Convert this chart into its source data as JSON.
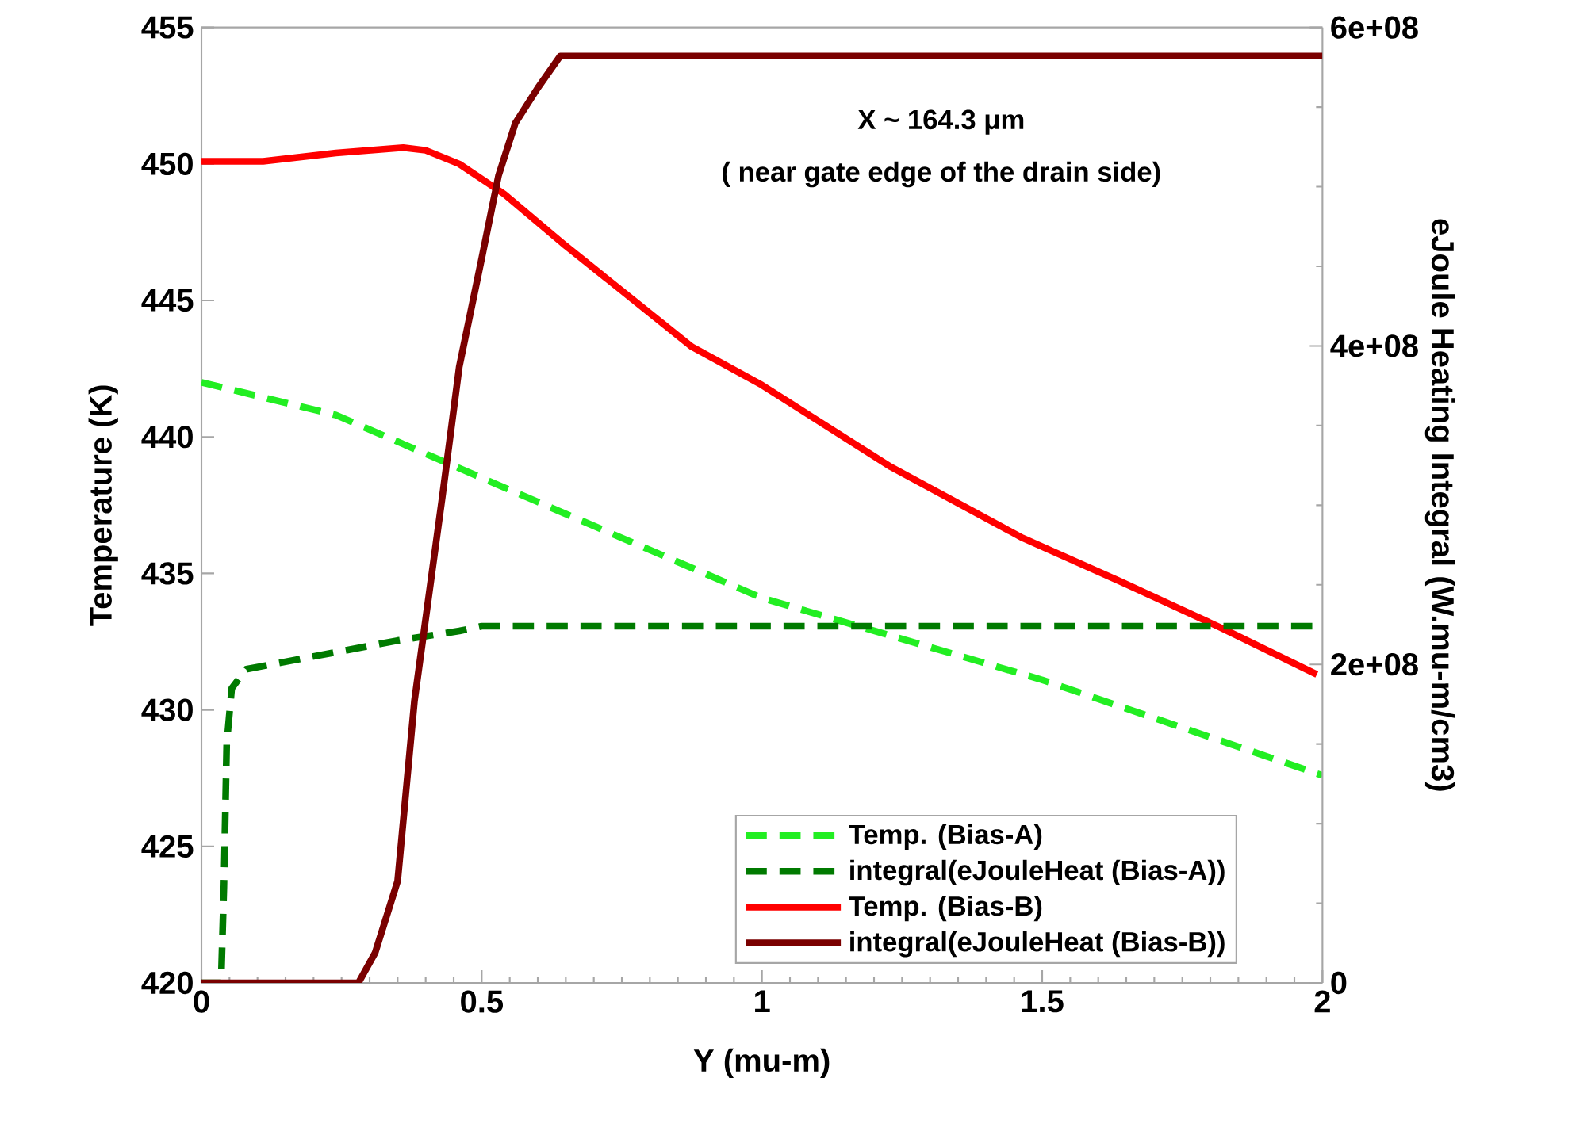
{
  "chart_data": {
    "type": "line",
    "xlabel": "Y (mu-m)",
    "ylabel": "Temperature (K)",
    "y2label": "eJoule Heating Integral (W.mu-m/cm3)",
    "annotations": [
      "X ~ 164.3 μm",
      "( near gate edge of the drain side)"
    ],
    "xlim": [
      0,
      2
    ],
    "xticks": [
      0,
      0.5,
      1,
      1.5,
      2
    ],
    "ylim": [
      420,
      455
    ],
    "yticks": [
      420,
      425,
      430,
      435,
      440,
      445,
      450,
      455
    ],
    "y2lim": [
      0,
      600000000
    ],
    "y2ticks": [
      {
        "value": 0,
        "label": "0"
      },
      {
        "value": 200000000,
        "label": "2e+08"
      },
      {
        "value": 400000000,
        "label": "4e+08"
      },
      {
        "value": 600000000,
        "label": "6e+08"
      }
    ],
    "legend": "bottom",
    "grid": false,
    "marker": "none",
    "series": [
      {
        "name": "Temp. (Bias-A)",
        "color": "#22ee22",
        "line_style": "dashed",
        "axis": "y",
        "x": [
          0,
          0.24,
          0.5,
          1.0,
          1.5,
          2.0
        ],
        "values": [
          442.0,
          440.8,
          438.5,
          434.1,
          431.1,
          427.6
        ]
      },
      {
        "name": "integral(eJouleHeat (Bias-A))",
        "color": "#007a00",
        "line_style": "dashed",
        "axis": "y2",
        "x": [
          0,
          0.035,
          0.04,
          0.045,
          0.054,
          0.08,
          0.2,
          0.35,
          0.46,
          0.5,
          2.0
        ],
        "values": [
          0,
          0,
          60000000,
          150000000,
          185000000,
          197000000,
          205000000,
          215000000,
          221000000,
          224000000,
          224000000
        ]
      },
      {
        "name": "Temp. (Bias-B)",
        "color": "#ff0000",
        "line_style": "solid",
        "axis": "y",
        "x": [
          0,
          0.11,
          0.24,
          0.36,
          0.4,
          0.46,
          0.54,
          0.65,
          0.875,
          1.0,
          1.23,
          1.465,
          1.64,
          1.82,
          1.99
        ],
        "values": [
          450.1,
          450.1,
          450.4,
          450.6,
          450.5,
          450.0,
          448.9,
          447.0,
          443.3,
          441.9,
          438.9,
          436.3,
          434.7,
          433.0,
          431.3
        ]
      },
      {
        "name": "integral(eJouleHeat (Bias-B))",
        "color": "#7a0000",
        "line_style": "solid",
        "axis": "y2",
        "x": [
          0,
          0.28,
          0.31,
          0.35,
          0.38,
          0.43,
          0.46,
          0.5,
          0.53,
          0.56,
          0.6,
          0.64,
          2.0
        ],
        "values": [
          0,
          0,
          19000000,
          64000000,
          177000000,
          306000000,
          387000000,
          455000000,
          507000000,
          540000000,
          562000000,
          582000000,
          582000000
        ]
      }
    ]
  }
}
